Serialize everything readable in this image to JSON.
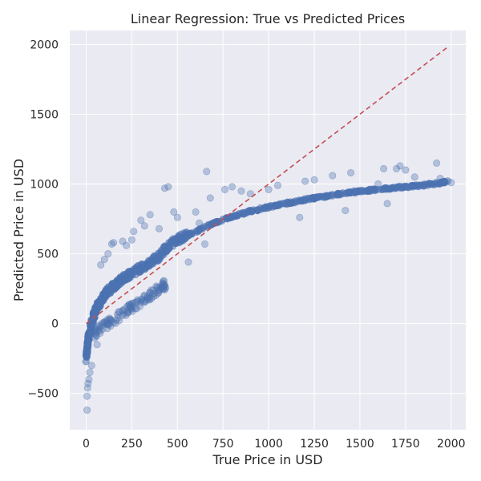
{
  "chart_data": {
    "type": "scatter",
    "title": "Linear Regression: True vs Predicted Prices",
    "xlabel": "True Price in USD",
    "ylabel": "Predicted Price in USD",
    "xlim": [
      -90,
      2080
    ],
    "ylim": [
      -760,
      2100
    ],
    "xticks": [
      0,
      250,
      500,
      750,
      1000,
      1250,
      1500,
      1750,
      2000
    ],
    "yticks": [
      -500,
      0,
      500,
      1000,
      1500,
      2000
    ],
    "xtick_labels": [
      "0",
      "250",
      "500",
      "750",
      "1000",
      "1250",
      "1500",
      "1750",
      "2000"
    ],
    "ytick_labels": [
      "−500",
      "0",
      "500",
      "1000",
      "1500",
      "2000"
    ],
    "grid": true,
    "legend": "none",
    "colors": {
      "background": "#eaeaf2",
      "grid": "#ffffff",
      "points": "#4c72b0",
      "reference_line": "#c44e52"
    },
    "reference_line": {
      "style": "dashed",
      "x": [
        0,
        1980
      ],
      "y": [
        0,
        1980
      ]
    },
    "series": [
      {
        "main_trend": [
          [
            0,
            -260
          ],
          [
            5,
            -180
          ],
          [
            10,
            -120
          ],
          [
            20,
            -60
          ],
          [
            30,
            0
          ],
          [
            40,
            50
          ],
          [
            50,
            90
          ],
          [
            65,
            130
          ],
          [
            80,
            160
          ],
          [
            100,
            200
          ],
          [
            120,
            230
          ],
          [
            150,
            270
          ],
          [
            180,
            300
          ],
          [
            210,
            330
          ],
          [
            250,
            360
          ],
          [
            300,
            400
          ],
          [
            350,
            440
          ],
          [
            400,
            480
          ],
          [
            450,
            560
          ],
          [
            500,
            600
          ],
          [
            550,
            630
          ],
          [
            600,
            660
          ],
          [
            650,
            690
          ],
          [
            700,
            720
          ],
          [
            750,
            745
          ],
          [
            800,
            765
          ],
          [
            850,
            785
          ],
          [
            900,
            805
          ],
          [
            950,
            820
          ],
          [
            1000,
            835
          ],
          [
            1050,
            850
          ],
          [
            1100,
            862
          ],
          [
            1150,
            875
          ],
          [
            1200,
            888
          ],
          [
            1250,
            900
          ],
          [
            1300,
            910
          ],
          [
            1350,
            920
          ],
          [
            1400,
            930
          ],
          [
            1450,
            940
          ],
          [
            1500,
            948
          ],
          [
            1550,
            955
          ],
          [
            1600,
            962
          ],
          [
            1650,
            968
          ],
          [
            1700,
            974
          ],
          [
            1750,
            980
          ],
          [
            1800,
            986
          ],
          [
            1850,
            992
          ],
          [
            1900,
            1000
          ],
          [
            1950,
            1010
          ],
          [
            1980,
            1015
          ]
        ],
        "outliers": [
          [
            5,
            -620
          ],
          [
            5,
            -520
          ],
          [
            8,
            -460
          ],
          [
            10,
            -430
          ],
          [
            15,
            -400
          ],
          [
            20,
            -350
          ],
          [
            30,
            -300
          ],
          [
            60,
            -150
          ],
          [
            80,
            420
          ],
          [
            100,
            460
          ],
          [
            120,
            500
          ],
          [
            140,
            570
          ],
          [
            150,
            580
          ],
          [
            200,
            590
          ],
          [
            220,
            560
          ],
          [
            250,
            600
          ],
          [
            260,
            660
          ],
          [
            300,
            740
          ],
          [
            320,
            700
          ],
          [
            350,
            780
          ],
          [
            400,
            680
          ],
          [
            430,
            970
          ],
          [
            450,
            980
          ],
          [
            480,
            800
          ],
          [
            500,
            760
          ],
          [
            560,
            440
          ],
          [
            600,
            800
          ],
          [
            620,
            720
          ],
          [
            650,
            570
          ],
          [
            660,
            1090
          ],
          [
            680,
            900
          ],
          [
            760,
            960
          ],
          [
            800,
            980
          ],
          [
            850,
            950
          ],
          [
            900,
            930
          ],
          [
            1000,
            960
          ],
          [
            1050,
            990
          ],
          [
            1150,
            880
          ],
          [
            1170,
            760
          ],
          [
            1200,
            1020
          ],
          [
            1250,
            1030
          ],
          [
            1350,
            1060
          ],
          [
            1420,
            810
          ],
          [
            1450,
            1080
          ],
          [
            1600,
            1000
          ],
          [
            1630,
            1110
          ],
          [
            1650,
            860
          ],
          [
            1700,
            1110
          ],
          [
            1720,
            1130
          ],
          [
            1750,
            1100
          ],
          [
            1800,
            1050
          ],
          [
            1920,
            1150
          ],
          [
            1940,
            1040
          ],
          [
            2000,
            1010
          ]
        ]
      }
    ]
  }
}
